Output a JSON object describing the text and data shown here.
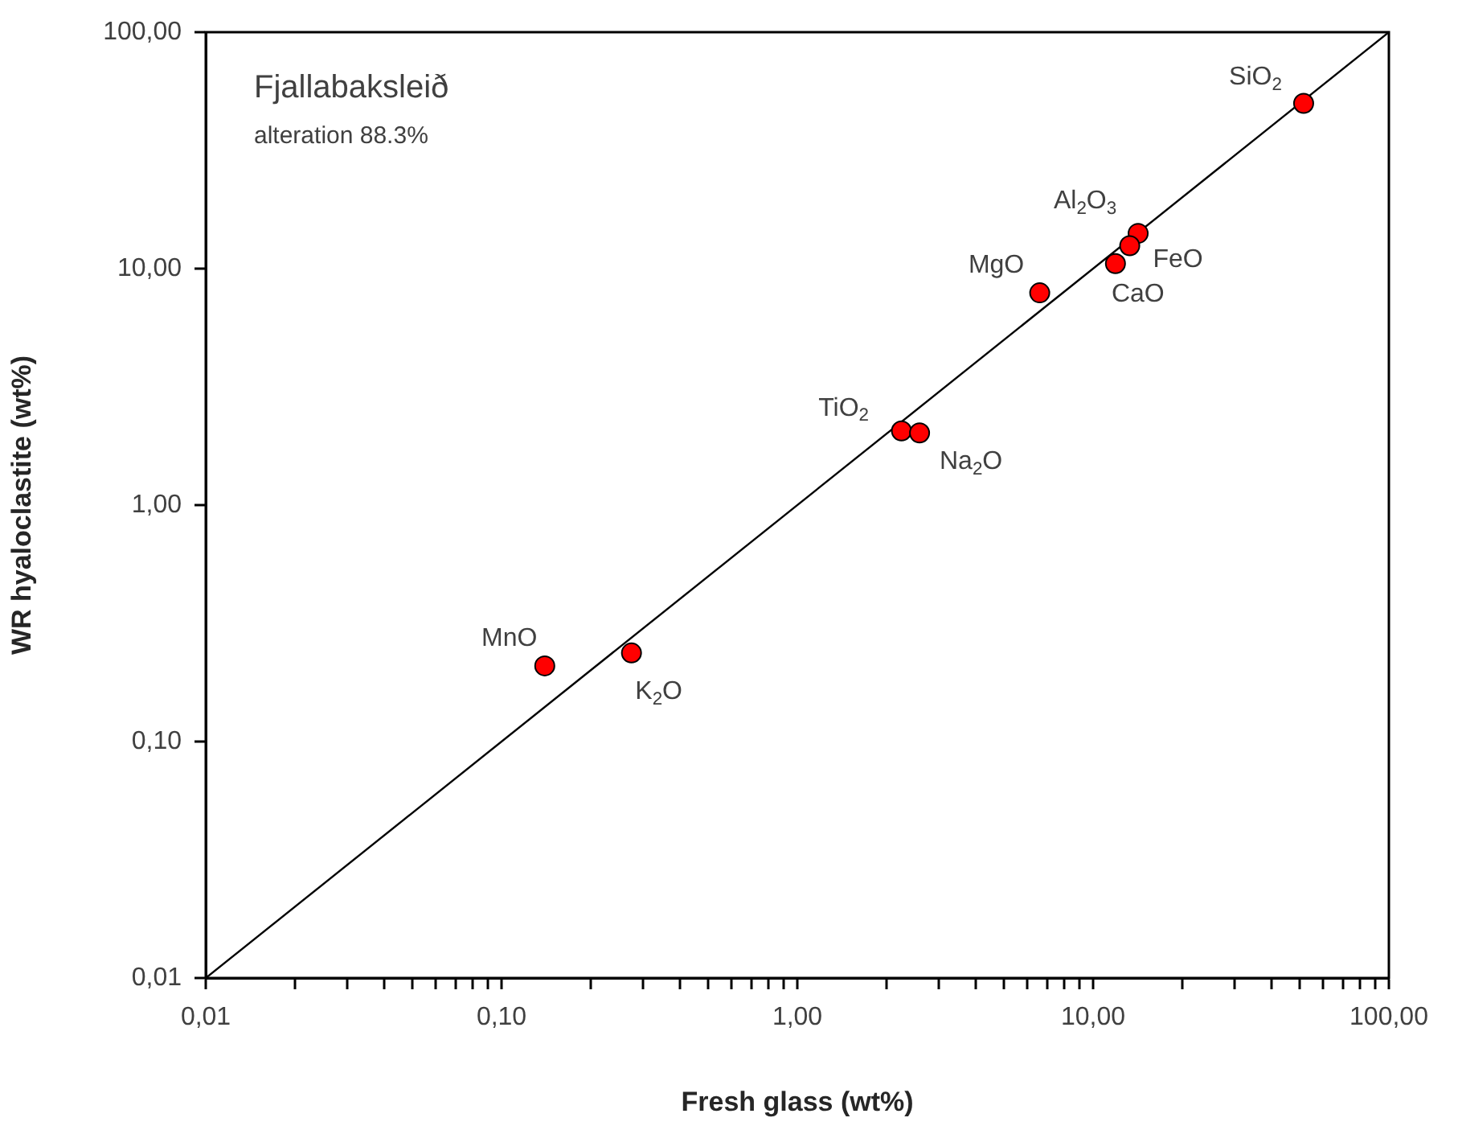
{
  "chart_data": {
    "type": "scatter",
    "title": "Fjallabaksleið",
    "subtitle": "alteration 88.3%",
    "xlabel": "Fresh glass (wt%)",
    "ylabel": "WR hyaloclastite (wt%)",
    "log": "xy",
    "grid": false,
    "legend": false,
    "marker": "circle",
    "xlim": [
      0.01,
      100
    ],
    "ylim": [
      0.01,
      100
    ],
    "xticks": [
      {
        "value": 0.01,
        "label": "0,01"
      },
      {
        "value": 0.02,
        "label": null
      },
      {
        "value": 0.03,
        "label": null
      },
      {
        "value": 0.04,
        "label": null
      },
      {
        "value": 0.05,
        "label": null
      },
      {
        "value": 0.06,
        "label": null
      },
      {
        "value": 0.07,
        "label": null
      },
      {
        "value": 0.08,
        "label": null
      },
      {
        "value": 0.09,
        "label": null
      },
      {
        "value": 0.1,
        "label": "0,10"
      },
      {
        "value": 0.2,
        "label": null
      },
      {
        "value": 0.3,
        "label": null
      },
      {
        "value": 0.4,
        "label": null
      },
      {
        "value": 0.5,
        "label": null
      },
      {
        "value": 0.6,
        "label": null
      },
      {
        "value": 0.7,
        "label": null
      },
      {
        "value": 0.8,
        "label": null
      },
      {
        "value": 0.9,
        "label": null
      },
      {
        "value": 1,
        "label": "1,00"
      },
      {
        "value": 2,
        "label": null
      },
      {
        "value": 3,
        "label": null
      },
      {
        "value": 4,
        "label": null
      },
      {
        "value": 5,
        "label": null
      },
      {
        "value": 6,
        "label": null
      },
      {
        "value": 7,
        "label": null
      },
      {
        "value": 8,
        "label": null
      },
      {
        "value": 9,
        "label": null
      },
      {
        "value": 10,
        "label": "10,00"
      },
      {
        "value": 20,
        "label": null
      },
      {
        "value": 30,
        "label": null
      },
      {
        "value": 40,
        "label": null
      },
      {
        "value": 50,
        "label": null
      },
      {
        "value": 60,
        "label": null
      },
      {
        "value": 70,
        "label": null
      },
      {
        "value": 80,
        "label": null
      },
      {
        "value": 90,
        "label": null
      },
      {
        "value": 100,
        "label": "100,00"
      }
    ],
    "yticks": [
      {
        "value": 0.01,
        "label": "0,01"
      },
      {
        "value": 0.1,
        "label": "0,10"
      },
      {
        "value": 1,
        "label": "1,00"
      },
      {
        "value": 10,
        "label": "10,00"
      },
      {
        "value": 100,
        "label": "100,00"
      }
    ],
    "series": [
      {
        "type": "scatter",
        "color": "#ff0000",
        "x": [
          51.5,
          14.2,
          13.3,
          11.9,
          6.6,
          2.25,
          2.59,
          0.14,
          0.275
        ],
        "values": [
          50,
          14.1,
          12.5,
          10.5,
          7.9,
          2.06,
          2.02,
          0.209,
          0.237
        ]
      },
      {
        "type": "line",
        "color": "#000000",
        "marker": "none",
        "x": [
          0.01,
          100
        ],
        "values": [
          0.01,
          100
        ]
      }
    ],
    "annotations": [
      {
        "text": "SiO$_{2}$",
        "x": 51.5,
        "y": 50
      },
      {
        "text": "Al$_{2}$O$_{3}$",
        "x": 14.2,
        "y": 14.1
      },
      {
        "text": "FeO",
        "x": 13.3,
        "y": 12.5
      },
      {
        "text": "CaO",
        "x": 11.9,
        "y": 10.5
      },
      {
        "text": "MgO",
        "x": 6.6,
        "y": 7.9
      },
      {
        "text": "TiO$_{2}$",
        "x": 2.25,
        "y": 2.06
      },
      {
        "text": "Na$_{2}$O",
        "x": 2.59,
        "y": 2.02
      },
      {
        "text": "MnO",
        "x": 0.14,
        "y": 0.209
      },
      {
        "text": "K$_{2}$O",
        "x": 0.275,
        "y": 0.237
      }
    ]
  }
}
